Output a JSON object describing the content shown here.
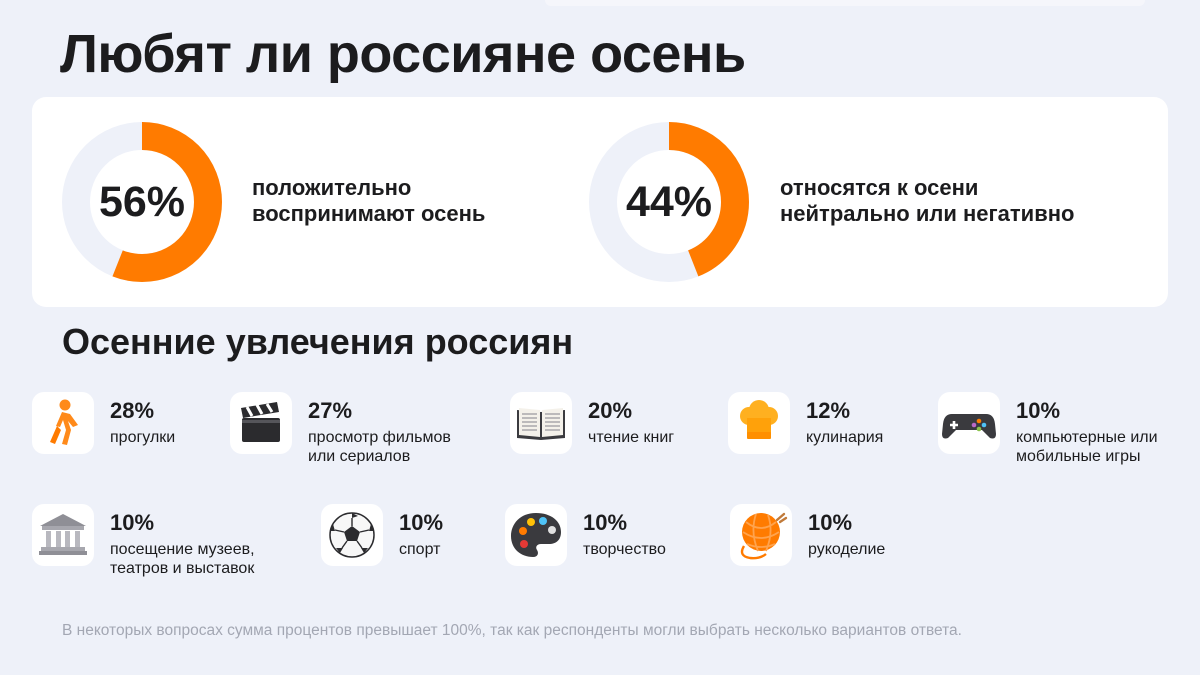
{
  "title": "Любят ли россияне осень",
  "subtitle": "Осенние увлечения россиян",
  "footnote": "В некоторых вопросах сумма процентов превышает 100%, так как респонденты могли выбрать несколько вариантов ответа.",
  "colors": {
    "accent": "#ff7b00",
    "track": "#eef1f9",
    "background": "#eef1f9"
  },
  "chart_data": [
    {
      "type": "pie",
      "values": [
        56,
        44
      ],
      "label": "56%",
      "caption": [
        "положительно",
        "воспринимают осень"
      ]
    },
    {
      "type": "pie",
      "values": [
        44,
        56
      ],
      "label": "44%",
      "caption": [
        "относятся к осени",
        "нейтрально или негативно"
      ]
    }
  ],
  "hobbies": [
    {
      "icon": "walking-person-icon",
      "pct": "28%",
      "lines": [
        "прогулки"
      ]
    },
    {
      "icon": "clapperboard-icon",
      "pct": "27%",
      "lines": [
        "просмотр фильмов",
        "или сериалов"
      ]
    },
    {
      "icon": "open-book-icon",
      "pct": "20%",
      "lines": [
        "чтение книг"
      ]
    },
    {
      "icon": "chef-hat-icon",
      "pct": "12%",
      "lines": [
        "кулинария"
      ]
    },
    {
      "icon": "gamepad-icon",
      "pct": "10%",
      "lines": [
        "компьютерные или",
        "мобильные игры"
      ]
    },
    {
      "icon": "museum-icon",
      "pct": "10%",
      "lines": [
        "посещение музеев,",
        "театров и выставок"
      ]
    },
    {
      "icon": "soccer-ball-icon",
      "pct": "10%",
      "lines": [
        "спорт"
      ]
    },
    {
      "icon": "palette-icon",
      "pct": "10%",
      "lines": [
        "творчество"
      ]
    },
    {
      "icon": "yarn-ball-icon",
      "pct": "10%",
      "lines": [
        "рукоделие"
      ]
    }
  ]
}
